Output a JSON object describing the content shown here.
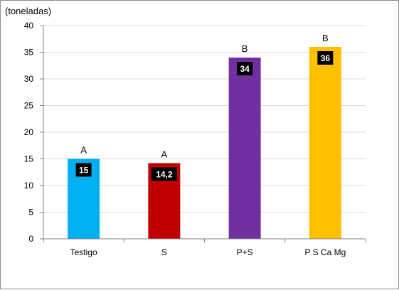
{
  "chart_data": {
    "type": "bar",
    "ylabel": "(toneladas)",
    "ylim": [
      0,
      40
    ],
    "ytick_step": 5,
    "grid": true,
    "categories": [
      "Testigo",
      "S",
      "P+S",
      "P S Ca Mg"
    ],
    "values": [
      15,
      14.2,
      34,
      36
    ],
    "data_labels": [
      "15",
      "14,2",
      "34",
      "36"
    ],
    "group_letters": [
      "A",
      "A",
      "B",
      "B"
    ],
    "colors": [
      "#00b0f0",
      "#c00000",
      "#7030a0",
      "#ffc000"
    ],
    "data_label_bg": "#000000",
    "gridline_color": "#d9d9d9",
    "axis_color": "#808080"
  }
}
